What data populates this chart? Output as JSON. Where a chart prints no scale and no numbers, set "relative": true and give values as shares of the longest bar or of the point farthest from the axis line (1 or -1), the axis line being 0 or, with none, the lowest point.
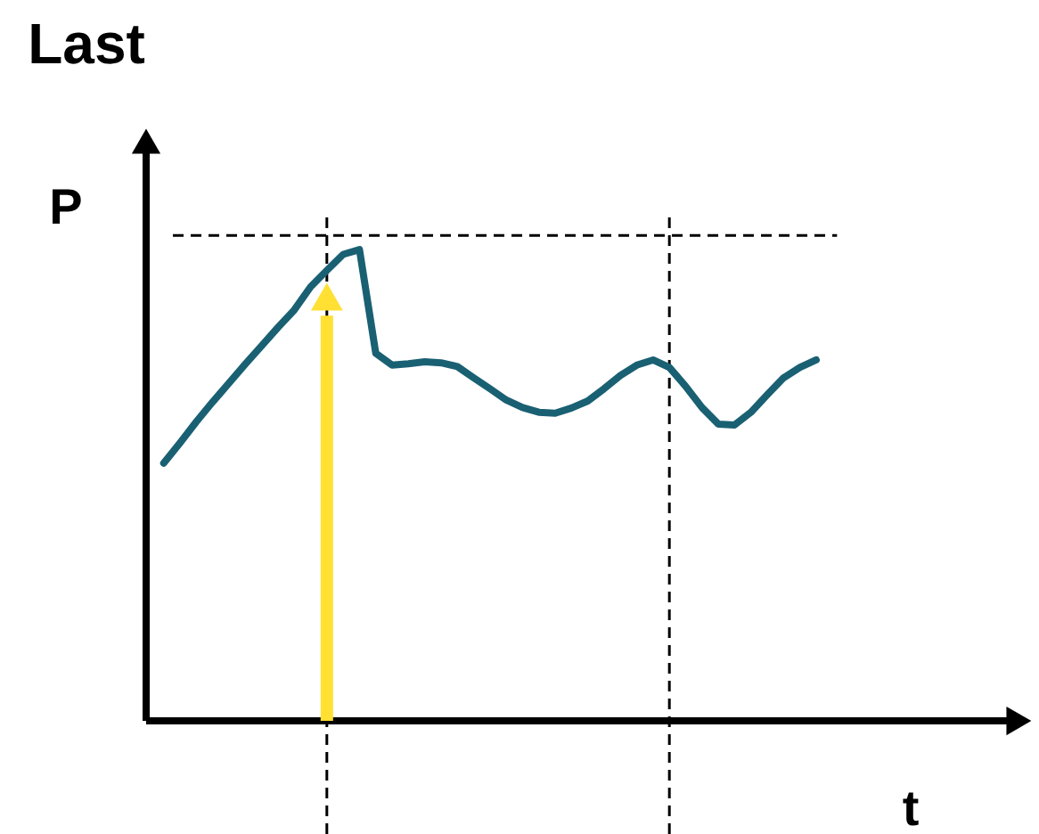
{
  "chart_data": {
    "type": "line",
    "title": "Last",
    "xlabel": "t",
    "ylabel": "P",
    "relative": true,
    "marker": "none",
    "line_style": "solid",
    "categories": [
      null,
      null,
      null,
      null,
      null,
      null,
      null,
      null,
      null,
      null,
      null,
      null,
      null,
      null,
      null,
      null,
      null,
      null,
      null,
      null,
      null,
      null,
      null,
      null,
      null,
      null,
      null,
      null,
      null,
      null,
      null,
      null,
      null,
      null,
      null,
      null,
      null,
      null,
      null,
      null,
      null
    ],
    "series": [
      {
        "color": "#1a6073",
        "values": [
          0.547,
          0.59,
          0.635,
          0.677,
          0.717,
          0.757,
          0.796,
          0.835,
          0.872,
          0.921,
          0.956,
          0.99,
          1.0,
          0.78,
          0.755,
          0.758,
          0.762,
          0.76,
          0.752,
          0.728,
          0.705,
          0.681,
          0.665,
          0.655,
          0.653,
          0.664,
          0.679,
          0.705,
          0.733,
          0.755,
          0.766,
          0.75,
          0.71,
          0.665,
          0.63,
          0.628,
          0.655,
          0.692,
          0.728,
          0.75,
          0.766
        ]
      }
    ],
    "ref_lines": [
      {
        "axis": "y",
        "value": 1.03,
        "color": "#000000",
        "line_style": "dashed"
      }
    ]
  }
}
